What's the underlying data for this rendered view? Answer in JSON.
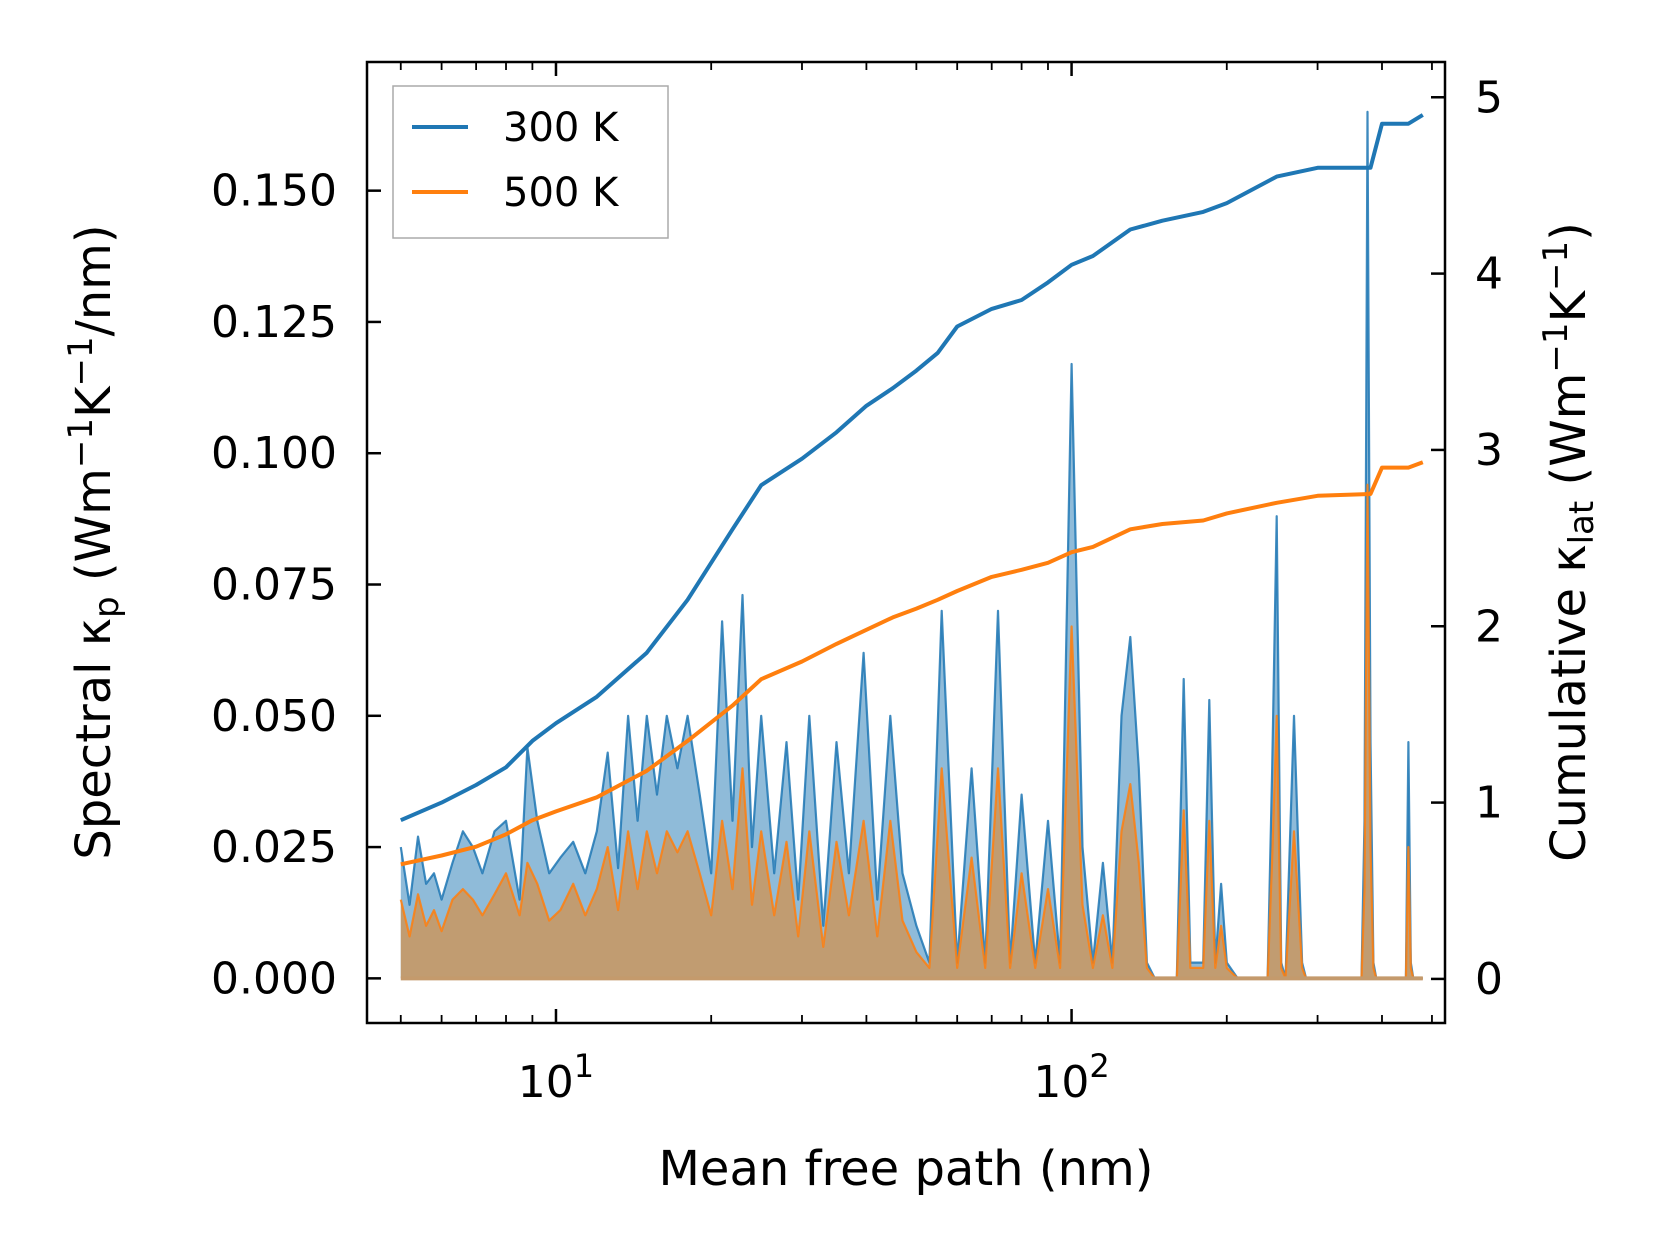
{
  "chart_data": {
    "type": "line",
    "xlabel": "Mean free path (nm)",
    "xscale": "log",
    "xlim": [
      4.3,
      530
    ],
    "x_ticks": [
      {
        "value": 10,
        "base": "10",
        "exp": "1"
      },
      {
        "value": 100,
        "base": "10",
        "exp": "2"
      }
    ],
    "y_left": {
      "label_prefix": "Spectral κ",
      "label_sub": "p",
      "label_units_open": " (Wm",
      "label_sup1": "−1",
      "label_mid": "K",
      "label_sup2": "−1",
      "label_units_close": "/nm)",
      "ylim": [
        -0.0085,
        0.1745
      ],
      "ticks": [
        0.0,
        0.025,
        0.05,
        0.075,
        0.1,
        0.125,
        0.15
      ],
      "tick_labels": [
        "0.000",
        "0.025",
        "0.050",
        "0.075",
        "0.100",
        "0.125",
        "0.150"
      ]
    },
    "y_right": {
      "label_prefix": "Cumulative κ",
      "label_sub": "lat",
      "label_units_open": " (Wm",
      "label_sup1": "−1",
      "label_mid": "K",
      "label_sup2": "−1",
      "label_units_close": ")",
      "ylim": [
        -0.25,
        5.2
      ],
      "ticks": [
        0,
        1,
        2,
        3,
        4,
        5
      ],
      "tick_labels": [
        "0",
        "1",
        "2",
        "3",
        "4",
        "5"
      ]
    },
    "legend": {
      "position": "top-left",
      "entries": [
        "300 K",
        "500 K"
      ]
    },
    "colors": {
      "300K": "#1f77b4",
      "500K": "#ff7f0e",
      "spectral500_fill": "#c49a6c"
    },
    "series": [
      {
        "name": "300 K",
        "kind": "cumulative",
        "axis": "right",
        "x": [
          5,
          6,
          7,
          8,
          9,
          10,
          12,
          15,
          18,
          22,
          25,
          30,
          35,
          40,
          45,
          50,
          55,
          60,
          70,
          80,
          90,
          100,
          110,
          130,
          150,
          180,
          200,
          250,
          300,
          380,
          400,
          450,
          480
        ],
        "values": [
          0.9,
          1.0,
          1.1,
          1.2,
          1.35,
          1.45,
          1.6,
          1.85,
          2.15,
          2.55,
          2.8,
          2.95,
          3.1,
          3.25,
          3.35,
          3.45,
          3.55,
          3.7,
          3.8,
          3.85,
          3.95,
          4.05,
          4.1,
          4.25,
          4.3,
          4.35,
          4.4,
          4.55,
          4.6,
          4.6,
          4.85,
          4.85,
          4.9
        ]
      },
      {
        "name": "500 K",
        "kind": "cumulative",
        "axis": "right",
        "x": [
          5,
          6,
          7,
          8,
          9,
          10,
          12,
          15,
          18,
          22,
          25,
          30,
          35,
          40,
          45,
          50,
          55,
          60,
          70,
          80,
          90,
          100,
          110,
          130,
          150,
          180,
          200,
          250,
          300,
          380,
          400,
          450,
          480
        ],
        "values": [
          0.65,
          0.7,
          0.75,
          0.82,
          0.9,
          0.95,
          1.03,
          1.18,
          1.35,
          1.55,
          1.7,
          1.8,
          1.9,
          1.98,
          2.05,
          2.1,
          2.15,
          2.2,
          2.28,
          2.32,
          2.36,
          2.42,
          2.45,
          2.55,
          2.58,
          2.6,
          2.64,
          2.7,
          2.74,
          2.75,
          2.9,
          2.9,
          2.93
        ]
      },
      {
        "name": "300 K spectral",
        "kind": "spectral",
        "axis": "left",
        "x": [
          5,
          5.2,
          5.4,
          5.6,
          5.8,
          6,
          6.3,
          6.6,
          6.9,
          7.2,
          7.6,
          8,
          8.5,
          8.8,
          9.2,
          9.7,
          10.2,
          10.8,
          11.4,
          12,
          12.6,
          13.2,
          13.8,
          14.4,
          15,
          15.7,
          16.4,
          17.2,
          18,
          19,
          20,
          21,
          22,
          23,
          24,
          25,
          26.5,
          28,
          29.5,
          31,
          33,
          35,
          37,
          39.5,
          42,
          44.5,
          47,
          50,
          53,
          56,
          60,
          64,
          68,
          72,
          76,
          80,
          85,
          90,
          95,
          100,
          105,
          110,
          115,
          120,
          125,
          130,
          135,
          140,
          145,
          150,
          160,
          165,
          170,
          180,
          185,
          190,
          195,
          200,
          210,
          240,
          245,
          250,
          255,
          260,
          270,
          280,
          285,
          290,
          300,
          360,
          365,
          370,
          375,
          380,
          385,
          390,
          430,
          440,
          445,
          450,
          455,
          460,
          480
        ],
        "values": [
          0.025,
          0.014,
          0.027,
          0.018,
          0.02,
          0.015,
          0.022,
          0.028,
          0.025,
          0.02,
          0.028,
          0.03,
          0.015,
          0.044,
          0.03,
          0.02,
          0.023,
          0.026,
          0.02,
          0.028,
          0.043,
          0.021,
          0.05,
          0.03,
          0.05,
          0.035,
          0.05,
          0.04,
          0.05,
          0.035,
          0.02,
          0.068,
          0.03,
          0.073,
          0.025,
          0.05,
          0.02,
          0.045,
          0.015,
          0.05,
          0.01,
          0.045,
          0.02,
          0.062,
          0.015,
          0.05,
          0.02,
          0.01,
          0.003,
          0.07,
          0.003,
          0.04,
          0.003,
          0.07,
          0.003,
          0.035,
          0.003,
          0.03,
          0.003,
          0.117,
          0.025,
          0.003,
          0.022,
          0.003,
          0.05,
          0.065,
          0.04,
          0.003,
          0.0,
          0.0,
          0.0,
          0.057,
          0.003,
          0.003,
          0.053,
          0.003,
          0.018,
          0.003,
          0.0,
          0.0,
          0.04,
          0.088,
          0.003,
          0.0,
          0.05,
          0.003,
          0.0,
          0.0,
          0.0,
          0.0,
          0.0,
          0.03,
          0.165,
          0.045,
          0.003,
          0.0,
          0.0,
          0.0,
          0.0,
          0.045,
          0.003,
          0.0,
          0.0
        ]
      },
      {
        "name": "500 K spectral",
        "kind": "spectral",
        "axis": "left",
        "x": [
          5,
          5.2,
          5.4,
          5.6,
          5.8,
          6,
          6.3,
          6.6,
          6.9,
          7.2,
          7.6,
          8,
          8.5,
          8.8,
          9.2,
          9.7,
          10.2,
          10.8,
          11.4,
          12,
          12.6,
          13.2,
          13.8,
          14.4,
          15,
          15.7,
          16.4,
          17.2,
          18,
          19,
          20,
          21,
          22,
          23,
          24,
          25,
          26.5,
          28,
          29.5,
          31,
          33,
          35,
          37,
          39.5,
          42,
          44.5,
          47,
          50,
          53,
          56,
          60,
          64,
          68,
          72,
          76,
          80,
          85,
          90,
          95,
          100,
          105,
          110,
          115,
          120,
          125,
          130,
          135,
          140,
          145,
          150,
          160,
          165,
          170,
          180,
          185,
          190,
          195,
          200,
          210,
          240,
          245,
          250,
          255,
          260,
          270,
          280,
          285,
          290,
          300,
          360,
          365,
          370,
          375,
          380,
          385,
          390,
          430,
          440,
          445,
          450,
          455,
          460,
          480
        ],
        "values": [
          0.015,
          0.008,
          0.016,
          0.01,
          0.013,
          0.009,
          0.015,
          0.017,
          0.015,
          0.012,
          0.016,
          0.02,
          0.012,
          0.022,
          0.018,
          0.011,
          0.013,
          0.018,
          0.012,
          0.017,
          0.025,
          0.013,
          0.028,
          0.017,
          0.028,
          0.02,
          0.028,
          0.024,
          0.028,
          0.02,
          0.012,
          0.03,
          0.017,
          0.04,
          0.014,
          0.028,
          0.012,
          0.026,
          0.008,
          0.028,
          0.006,
          0.026,
          0.012,
          0.03,
          0.008,
          0.03,
          0.011,
          0.005,
          0.002,
          0.04,
          0.002,
          0.023,
          0.002,
          0.04,
          0.002,
          0.02,
          0.002,
          0.017,
          0.002,
          0.067,
          0.014,
          0.002,
          0.012,
          0.002,
          0.028,
          0.037,
          0.022,
          0.002,
          0.0,
          0.0,
          0.0,
          0.032,
          0.002,
          0.002,
          0.03,
          0.002,
          0.01,
          0.002,
          0.0,
          0.0,
          0.023,
          0.05,
          0.002,
          0.0,
          0.028,
          0.002,
          0.0,
          0.0,
          0.0,
          0.0,
          0.0,
          0.017,
          0.094,
          0.025,
          0.002,
          0.0,
          0.0,
          0.0,
          0.0,
          0.025,
          0.002,
          0.0,
          0.0
        ]
      }
    ]
  }
}
